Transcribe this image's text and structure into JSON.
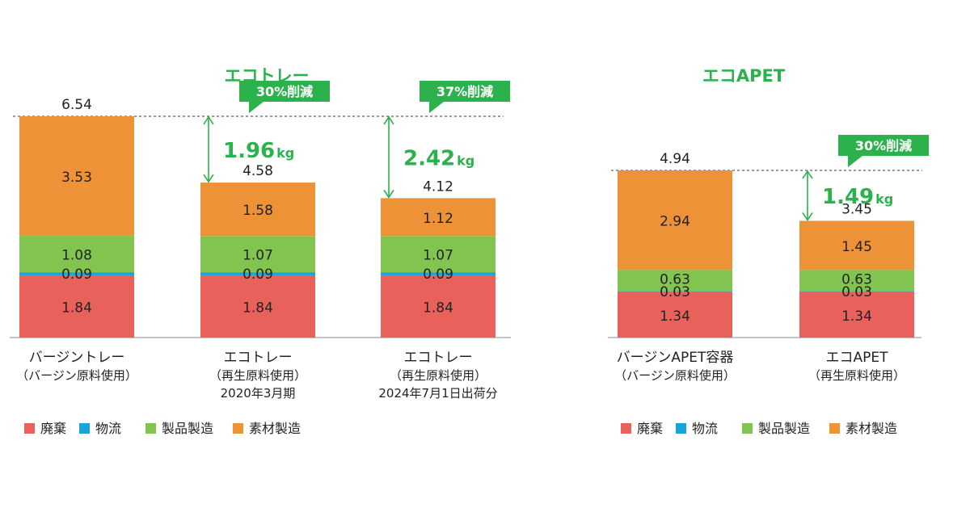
{
  "colors": {
    "waste": "#e8625b",
    "logistics": "#1aa3d9",
    "product": "#82c450",
    "material": "#ee9238",
    "accent": "#2bb24c",
    "axis": "#888888",
    "text": "#222222"
  },
  "legend": [
    {
      "key": "waste",
      "label": "廃棄"
    },
    {
      "key": "logistics",
      "label": "物流"
    },
    {
      "key": "product",
      "label": "製品製造"
    },
    {
      "key": "material",
      "label": "素材製造"
    }
  ],
  "chart_data": [
    {
      "type": "bar",
      "stacked": true,
      "title": "エコトレー",
      "segment_keys": [
        "waste",
        "logistics",
        "product",
        "material"
      ],
      "categories": [
        {
          "lines": [
            "バージントレー",
            "（バージン原料使用）"
          ],
          "total": "6.54",
          "segments": [
            1.84,
            0.09,
            1.08,
            3.53
          ],
          "segment_labels": [
            "1.84",
            "0.09",
            "1.08",
            "3.53"
          ]
        },
        {
          "lines": [
            "エコトレー",
            "（再生原料使用）",
            "2020年3月期"
          ],
          "total": "4.58",
          "segments": [
            1.84,
            0.09,
            1.07,
            1.58
          ],
          "segment_labels": [
            "1.84",
            "0.09",
            "1.07",
            "1.58"
          ]
        },
        {
          "lines": [
            "エコトレー",
            "（再生原料使用）",
            "2024年7月1日出荷分"
          ],
          "total": "4.12",
          "segments": [
            1.84,
            0.09,
            1.07,
            1.12
          ],
          "segment_labels": [
            "1.84",
            "0.09",
            "1.07",
            "1.12"
          ]
        }
      ],
      "annotations": [
        {
          "category": 1,
          "reduction": "1.96",
          "unit": "kg",
          "badge": "30%削減"
        },
        {
          "category": 2,
          "reduction": "2.42",
          "unit": "kg",
          "badge": "37%削減"
        }
      ],
      "baseline_value": 6.54
    },
    {
      "type": "bar",
      "stacked": true,
      "title": "エコAPET",
      "segment_keys": [
        "waste",
        "logistics",
        "product",
        "material"
      ],
      "categories": [
        {
          "lines": [
            "バージンAPET容器",
            "（バージン原料使用）"
          ],
          "total": "4.94",
          "segments": [
            1.34,
            0.03,
            0.63,
            2.94
          ],
          "segment_labels": [
            "1.34",
            "0.03",
            "0.63",
            "2.94"
          ]
        },
        {
          "lines": [
            "エコAPET",
            "（再生原料使用）"
          ],
          "total": "3.45",
          "segments": [
            1.34,
            0.03,
            0.63,
            1.45
          ],
          "segment_labels": [
            "1.34",
            "0.03",
            "0.63",
            "1.45"
          ]
        }
      ],
      "annotations": [
        {
          "category": 1,
          "reduction": "1.49",
          "unit": "kg",
          "badge": "30%削減"
        }
      ],
      "baseline_value": 4.94
    }
  ]
}
